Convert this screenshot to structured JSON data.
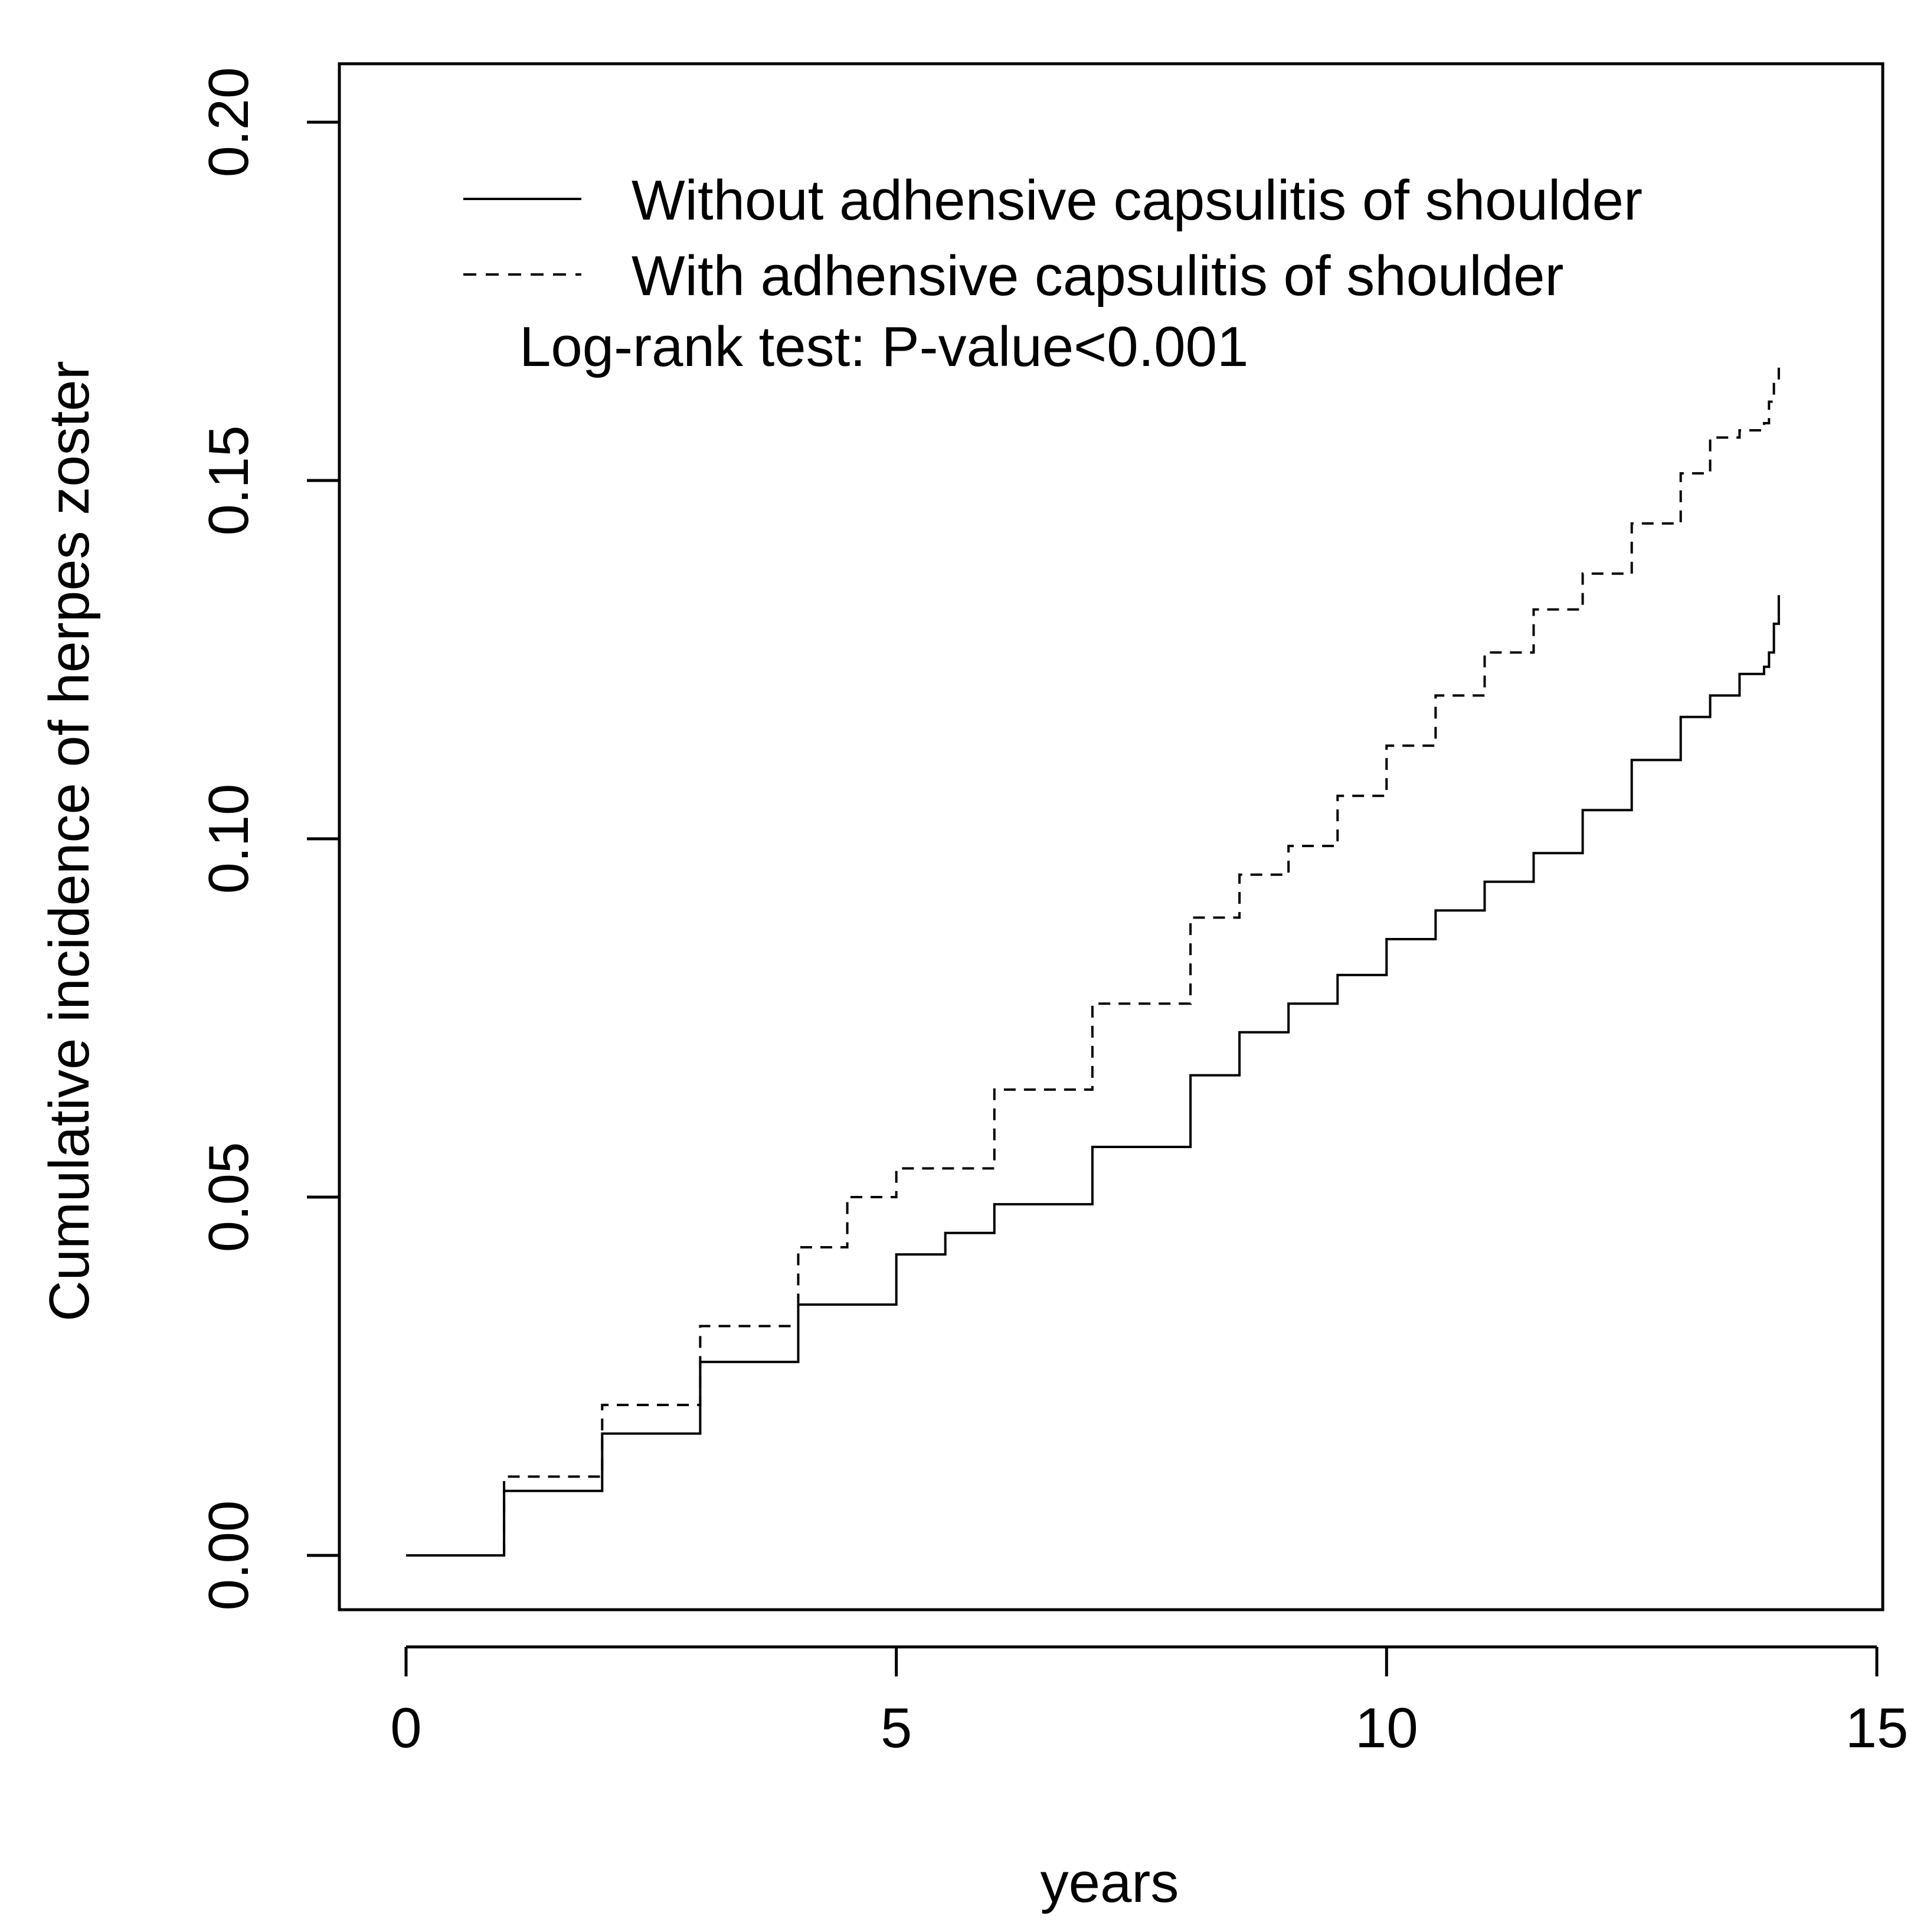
{
  "chart_data": {
    "type": "line",
    "title": "",
    "xlabel": "years",
    "ylabel": "Cumulative incidence of herpes zoster",
    "xlim": [
      0,
      15
    ],
    "ylim": [
      0.0,
      0.2
    ],
    "xticks": [
      0,
      5,
      10,
      15
    ],
    "xtick_labels": [
      "0",
      "5",
      "10",
      "15"
    ],
    "yticks": [
      0.0,
      0.05,
      0.1,
      0.15,
      0.2
    ],
    "ytick_labels": [
      "0.00",
      "0.05",
      "0.10",
      "0.15",
      "0.20"
    ],
    "grid": false,
    "legend_position": "top",
    "annotation": "Log-rank test: P-value<0.001",
    "series": [
      {
        "name": "Without adhensive capsulitis of shoulder",
        "line_style": "solid",
        "x": [
          0,
          1,
          2,
          3,
          4,
          5,
          5.5,
          6,
          7,
          8,
          8.5,
          9,
          9.5,
          10,
          10.5,
          11,
          11.5,
          12,
          12.5,
          13,
          13.3,
          13.6,
          13.85,
          13.9,
          13.95,
          14.0
        ],
        "y": [
          0,
          0.009,
          0.017,
          0.027,
          0.035,
          0.042,
          0.045,
          0.049,
          0.057,
          0.067,
          0.073,
          0.077,
          0.081,
          0.086,
          0.09,
          0.094,
          0.098,
          0.104,
          0.111,
          0.117,
          0.12,
          0.123,
          0.124,
          0.126,
          0.13,
          0.134
        ]
      },
      {
        "name": "With adhensive capsulitis of shoulder",
        "line_style": "dashed",
        "x": [
          0,
          1,
          2,
          3,
          4,
          4.5,
          5,
          6,
          7,
          8,
          8.5,
          9,
          9.5,
          10,
          10.5,
          11,
          11.5,
          12,
          12.5,
          13,
          13.3,
          13.6,
          13.85,
          13.9,
          13.95,
          14.0
        ],
        "y": [
          0,
          0.011,
          0.021,
          0.032,
          0.043,
          0.05,
          0.054,
          0.065,
          0.077,
          0.089,
          0.095,
          0.099,
          0.106,
          0.113,
          0.12,
          0.126,
          0.132,
          0.137,
          0.144,
          0.151,
          0.156,
          0.157,
          0.158,
          0.161,
          0.164,
          0.166
        ]
      }
    ]
  }
}
